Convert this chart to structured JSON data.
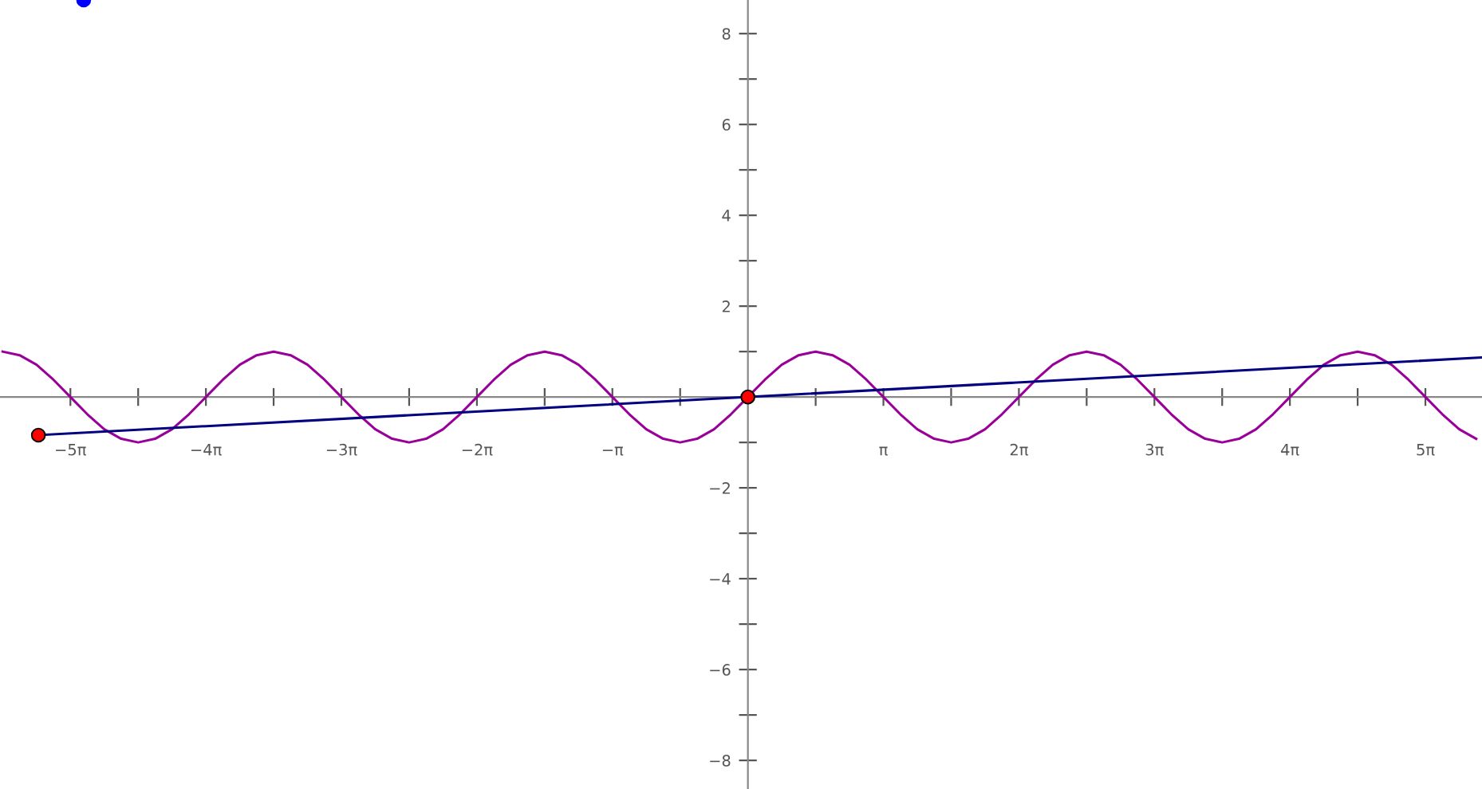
{
  "chart_data": {
    "type": "line",
    "xlim": [
      -17.34,
      17.02
    ],
    "ylim": [
      -8.63,
      8.74
    ],
    "xticks": [
      {
        "value": -15.708,
        "label": "−5π"
      },
      {
        "value": -14.137,
        "label": null
      },
      {
        "value": -12.566,
        "label": "−4π"
      },
      {
        "value": -10.996,
        "label": null
      },
      {
        "value": -9.425,
        "label": "−3π"
      },
      {
        "value": -7.854,
        "label": null
      },
      {
        "value": -6.283,
        "label": "−2π"
      },
      {
        "value": -4.712,
        "label": null
      },
      {
        "value": -3.142,
        "label": "−π"
      },
      {
        "value": -1.571,
        "label": null
      },
      {
        "value": 1.571,
        "label": null
      },
      {
        "value": 3.142,
        "label": "π"
      },
      {
        "value": 4.712,
        "label": null
      },
      {
        "value": 6.283,
        "label": "2π"
      },
      {
        "value": 7.854,
        "label": null
      },
      {
        "value": 9.425,
        "label": "3π"
      },
      {
        "value": 10.996,
        "label": null
      },
      {
        "value": 12.566,
        "label": "4π"
      },
      {
        "value": 14.137,
        "label": null
      },
      {
        "value": 15.708,
        "label": "5π"
      }
    ],
    "yticks": [
      -8,
      {
        "value": -7,
        "label": null
      },
      -6,
      {
        "value": -5,
        "label": null
      },
      -4,
      {
        "value": -3,
        "label": null
      },
      -2,
      {
        "value": -1,
        "label": null
      },
      {
        "value": 1,
        "label": null
      },
      2,
      {
        "value": 3,
        "label": null
      },
      4,
      {
        "value": 5,
        "label": null
      },
      6,
      {
        "value": 7,
        "label": null
      },
      8
    ],
    "grid": false,
    "legend": false,
    "series": [
      {
        "color": "#990099",
        "marker": "none",
        "x": [
          -17.279,
          -16.886,
          -16.493,
          -16.101,
          -15.708,
          -15.315,
          -14.923,
          -14.53,
          -14.137,
          -13.744,
          -13.352,
          -12.959,
          -12.566,
          -12.174,
          -11.781,
          -11.388,
          -10.996,
          -10.603,
          -10.21,
          -9.817,
          -9.425,
          -9.032,
          -8.639,
          -8.247,
          -7.854,
          -7.461,
          -7.069,
          -6.676,
          -6.283,
          -5.89,
          -5.498,
          -5.105,
          -4.712,
          -4.32,
          -3.927,
          -3.534,
          -3.142,
          -2.749,
          -2.356,
          -1.963,
          -1.571,
          -1.178,
          -0.785,
          -0.393,
          0,
          0.393,
          0.785,
          1.178,
          1.571,
          1.963,
          2.356,
          2.749,
          3.142,
          3.534,
          3.927,
          4.32,
          4.712,
          5.105,
          5.498,
          5.89,
          6.283,
          6.676,
          7.069,
          7.461,
          7.854,
          8.247,
          8.639,
          9.032,
          9.425,
          9.817,
          10.21,
          10.603,
          10.996,
          11.388,
          11.781,
          12.174,
          12.566,
          12.959,
          13.352,
          13.744,
          14.137,
          14.53,
          14.923,
          15.315,
          15.708,
          16.101,
          16.493,
          16.886
        ],
        "values": [
          1,
          0.92,
          0.71,
          0.38,
          0,
          -0.38,
          -0.71,
          -0.92,
          -1,
          -0.92,
          -0.71,
          -0.38,
          0,
          0.38,
          0.71,
          0.92,
          1,
          0.92,
          0.71,
          0.38,
          0,
          -0.38,
          -0.71,
          -0.92,
          -1,
          -0.92,
          -0.71,
          -0.38,
          0,
          0.38,
          0.71,
          0.92,
          1,
          0.92,
          0.71,
          0.38,
          0,
          -0.38,
          -0.71,
          -0.92,
          -1,
          -0.92,
          -0.71,
          -0.38,
          0,
          0.38,
          0.71,
          0.92,
          1,
          0.92,
          0.71,
          0.38,
          0,
          -0.38,
          -0.71,
          -0.92,
          -1,
          -0.92,
          -0.71,
          -0.38,
          0,
          0.38,
          0.71,
          0.92,
          1,
          0.92,
          0.71,
          0.38,
          0,
          -0.38,
          -0.71,
          -0.92,
          -1,
          -0.92,
          -0.71,
          -0.38,
          0,
          0.38,
          0.71,
          0.92,
          1,
          0.92,
          0.71,
          0.38,
          0,
          -0.38,
          -0.71,
          -0.92
        ]
      },
      {
        "color": "#000080",
        "marker": "none",
        "x": [
          -16.45,
          17.02
        ],
        "values": [
          -0.84,
          0.87
        ]
      },
      {
        "type": "scatter",
        "color": "#ff0000",
        "marker": "circle",
        "x": [
          -16.45,
          0
        ],
        "values": [
          -0.84,
          0
        ]
      },
      {
        "type": "scatter",
        "color": "#0000ff",
        "marker": "circle",
        "x": [
          -15.4
        ],
        "values": [
          8.74
        ]
      }
    ]
  }
}
